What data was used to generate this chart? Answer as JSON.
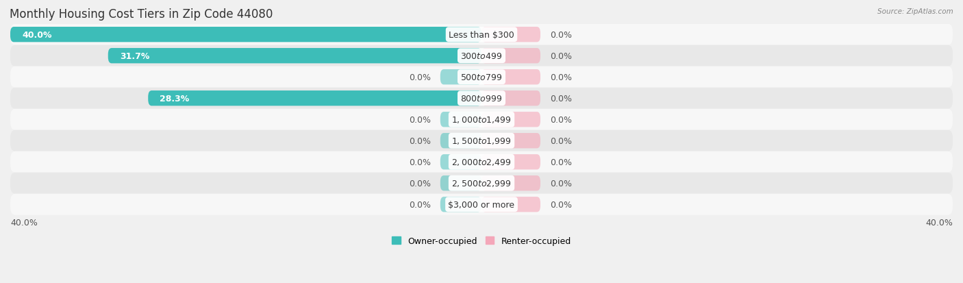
{
  "title": "Monthly Housing Cost Tiers in Zip Code 44080",
  "source": "Source: ZipAtlas.com",
  "categories": [
    "Less than $300",
    "$300 to $499",
    "$500 to $799",
    "$800 to $999",
    "$1,000 to $1,499",
    "$1,500 to $1,999",
    "$2,000 to $2,499",
    "$2,500 to $2,999",
    "$3,000 or more"
  ],
  "owner_values": [
    40.0,
    31.7,
    0.0,
    28.3,
    0.0,
    0.0,
    0.0,
    0.0,
    0.0
  ],
  "renter_values": [
    0.0,
    0.0,
    0.0,
    0.0,
    0.0,
    0.0,
    0.0,
    0.0,
    0.0
  ],
  "owner_color": "#3DBDB8",
  "renter_color": "#F4A7B9",
  "owner_label": "Owner-occupied",
  "renter_label": "Renter-occupied",
  "axis_label_left": "40.0%",
  "axis_label_right": "40.0%",
  "max_val": 40.0,
  "stub_val": 3.5,
  "renter_stub_val": 5.0,
  "bg_color": "#f0f0f0",
  "row_light": "#f7f7f7",
  "row_dark": "#e8e8e8",
  "title_fontsize": 12,
  "label_fontsize": 9,
  "value_fontsize": 9,
  "tick_fontsize": 9
}
